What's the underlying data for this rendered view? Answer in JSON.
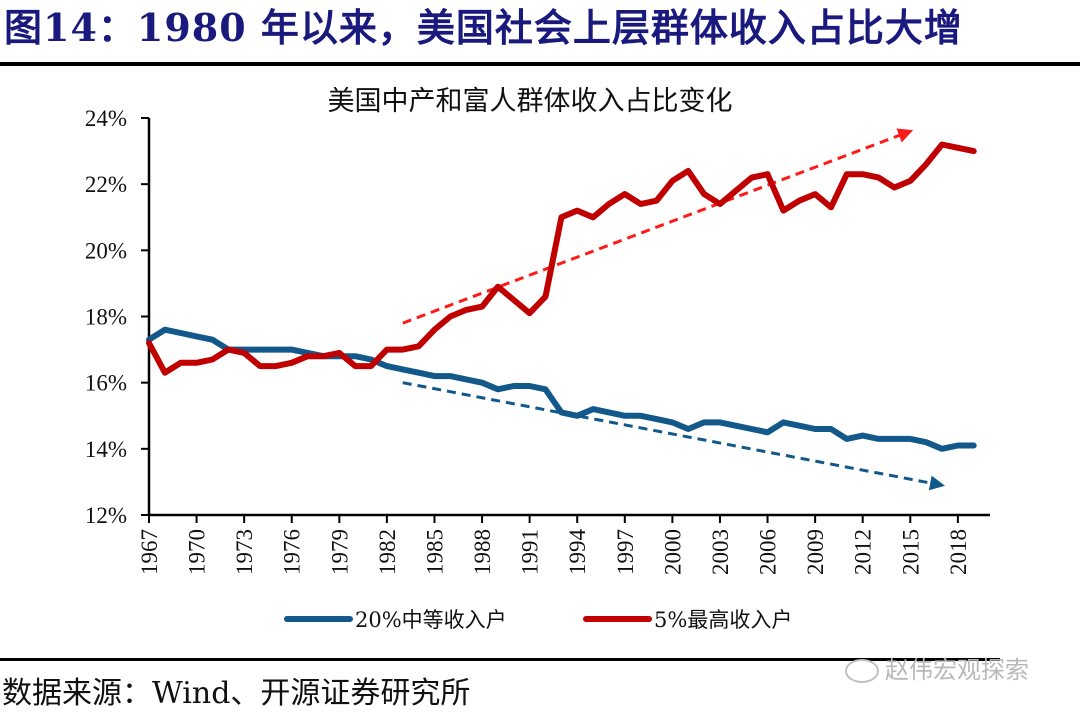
{
  "figure": {
    "title": "图14：1980 年以来，美国社会上层群体收入占比大增",
    "source": "数据来源：Wind、开源证券研究所",
    "watermark": "赵伟宏观探索"
  },
  "colors": {
    "title": "#1a1a7e",
    "middle": "#12588a",
    "top": "#c00000",
    "trend_up": "#ff1a1a",
    "trend_down": "#12588a"
  },
  "chart_data": {
    "type": "line",
    "title": "美国中产和富人群体收入占比变化",
    "xlabel": "",
    "ylabel": "",
    "ylim": [
      12,
      24
    ],
    "yticks": [
      12,
      14,
      16,
      18,
      20,
      22,
      24
    ],
    "ytick_labels": [
      "12%",
      "14%",
      "16%",
      "18%",
      "20%",
      "22%",
      "24%"
    ],
    "xlim": [
      1967,
      2019
    ],
    "xtick_labels": [
      "1967",
      "1970",
      "1973",
      "1976",
      "1979",
      "1982",
      "1985",
      "1988",
      "1991",
      "1994",
      "1997",
      "2000",
      "2003",
      "2006",
      "2009",
      "2012",
      "2015",
      "2018"
    ],
    "x_start": 1967,
    "legend_position": "bottom",
    "grid": false,
    "series": [
      {
        "name": "20%中等收入户",
        "color": "#12588a",
        "values": [
          17.3,
          17.6,
          17.5,
          17.4,
          17.3,
          17.0,
          17.0,
          17.0,
          17.0,
          17.0,
          16.9,
          16.8,
          16.8,
          16.8,
          16.7,
          16.5,
          16.4,
          16.3,
          16.2,
          16.2,
          16.1,
          16.0,
          15.8,
          15.9,
          15.9,
          15.8,
          15.1,
          15.0,
          15.2,
          15.1,
          15.0,
          15.0,
          14.9,
          14.8,
          14.6,
          14.8,
          14.8,
          14.7,
          14.6,
          14.5,
          14.8,
          14.7,
          14.6,
          14.6,
          14.3,
          14.4,
          14.3,
          14.3,
          14.3,
          14.2,
          14.0,
          14.1,
          14.1
        ]
      },
      {
        "name": "5%最高收入户",
        "color": "#c00000",
        "values": [
          17.2,
          16.3,
          16.6,
          16.6,
          16.7,
          17.0,
          16.9,
          16.5,
          16.5,
          16.6,
          16.8,
          16.8,
          16.9,
          16.5,
          16.5,
          17.0,
          17.0,
          17.1,
          17.6,
          18.0,
          18.2,
          18.3,
          18.9,
          18.5,
          18.1,
          18.6,
          21.0,
          21.2,
          21.0,
          21.4,
          21.7,
          21.4,
          21.5,
          22.1,
          22.4,
          21.7,
          21.4,
          21.8,
          22.2,
          22.3,
          21.2,
          21.5,
          21.7,
          21.3,
          22.3,
          22.3,
          22.2,
          21.9,
          22.1,
          22.6,
          23.2,
          23.1,
          23.0
        ]
      }
    ],
    "annotations": [
      {
        "type": "trend-arrow",
        "direction": "up",
        "from": [
          1983,
          17.8
        ],
        "to": [
          2015,
          23.6
        ],
        "color": "#ff1a1a"
      },
      {
        "type": "trend-arrow",
        "direction": "down",
        "from": [
          1983,
          16.0
        ],
        "to": [
          2017,
          12.9
        ],
        "color": "#12588a"
      }
    ]
  }
}
